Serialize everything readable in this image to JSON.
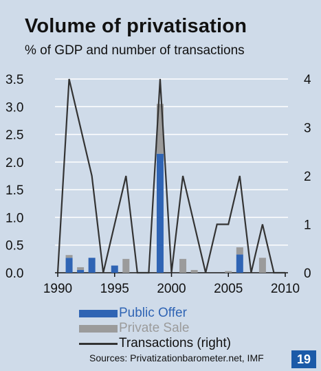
{
  "title": "Volume of privatisation",
  "subtitle": "% of GDP and number of transactions",
  "source": "Sources: Privatizationbarometer.net, IMF",
  "badge": "19",
  "colors": {
    "public_offer": "#2f64b4",
    "private_sale": "#9b9b9b",
    "line": "#333333",
    "background": "#cfdbe9",
    "grid": "#ffffff"
  },
  "chart_data": {
    "type": "bar",
    "title": "Volume of privatisation",
    "subtitle": "% of GDP and number of transactions",
    "x": [
      1990,
      1991,
      1992,
      1993,
      1994,
      1995,
      1996,
      1997,
      1998,
      1999,
      2000,
      2001,
      2002,
      2003,
      2004,
      2005,
      2006,
      2007,
      2008,
      2009,
      2010
    ],
    "x_ticks": [
      "1990",
      "1995",
      "2000",
      "2005",
      "2010"
    ],
    "ylim": [
      0,
      3.5
    ],
    "y_ticks": [
      "0.0",
      "0.5",
      "1.0",
      "1.5",
      "2.0",
      "2.5",
      "3.0",
      "3.5"
    ],
    "y2lim": [
      0,
      4
    ],
    "y2_ticks": [
      "0",
      "1",
      "2",
      "3",
      "4"
    ],
    "grid": "horizontal",
    "legend_position": "bottom-left",
    "series": [
      {
        "name": "Public Offer",
        "kind": "bar",
        "stack": "a",
        "values": [
          0,
          0.27,
          0.05,
          0.27,
          0,
          0.13,
          0,
          0,
          0,
          2.15,
          0,
          0,
          0,
          0,
          0,
          0,
          0.33,
          0,
          0,
          0,
          0
        ]
      },
      {
        "name": "Private Sale",
        "kind": "bar",
        "stack": "a",
        "values": [
          0,
          0.05,
          0.05,
          0,
          0,
          0,
          0.25,
          0,
          0,
          0.9,
          0,
          0.25,
          0.05,
          0,
          0,
          0.03,
          0.13,
          0,
          0.27,
          0,
          0
        ]
      },
      {
        "name": "Transactions (right)",
        "kind": "line",
        "axis": "right",
        "values": [
          0,
          4,
          3,
          2,
          0,
          1,
          2,
          0,
          0,
          4,
          0,
          2,
          1,
          0,
          1,
          1,
          2,
          0,
          1,
          0,
          0
        ]
      }
    ]
  }
}
